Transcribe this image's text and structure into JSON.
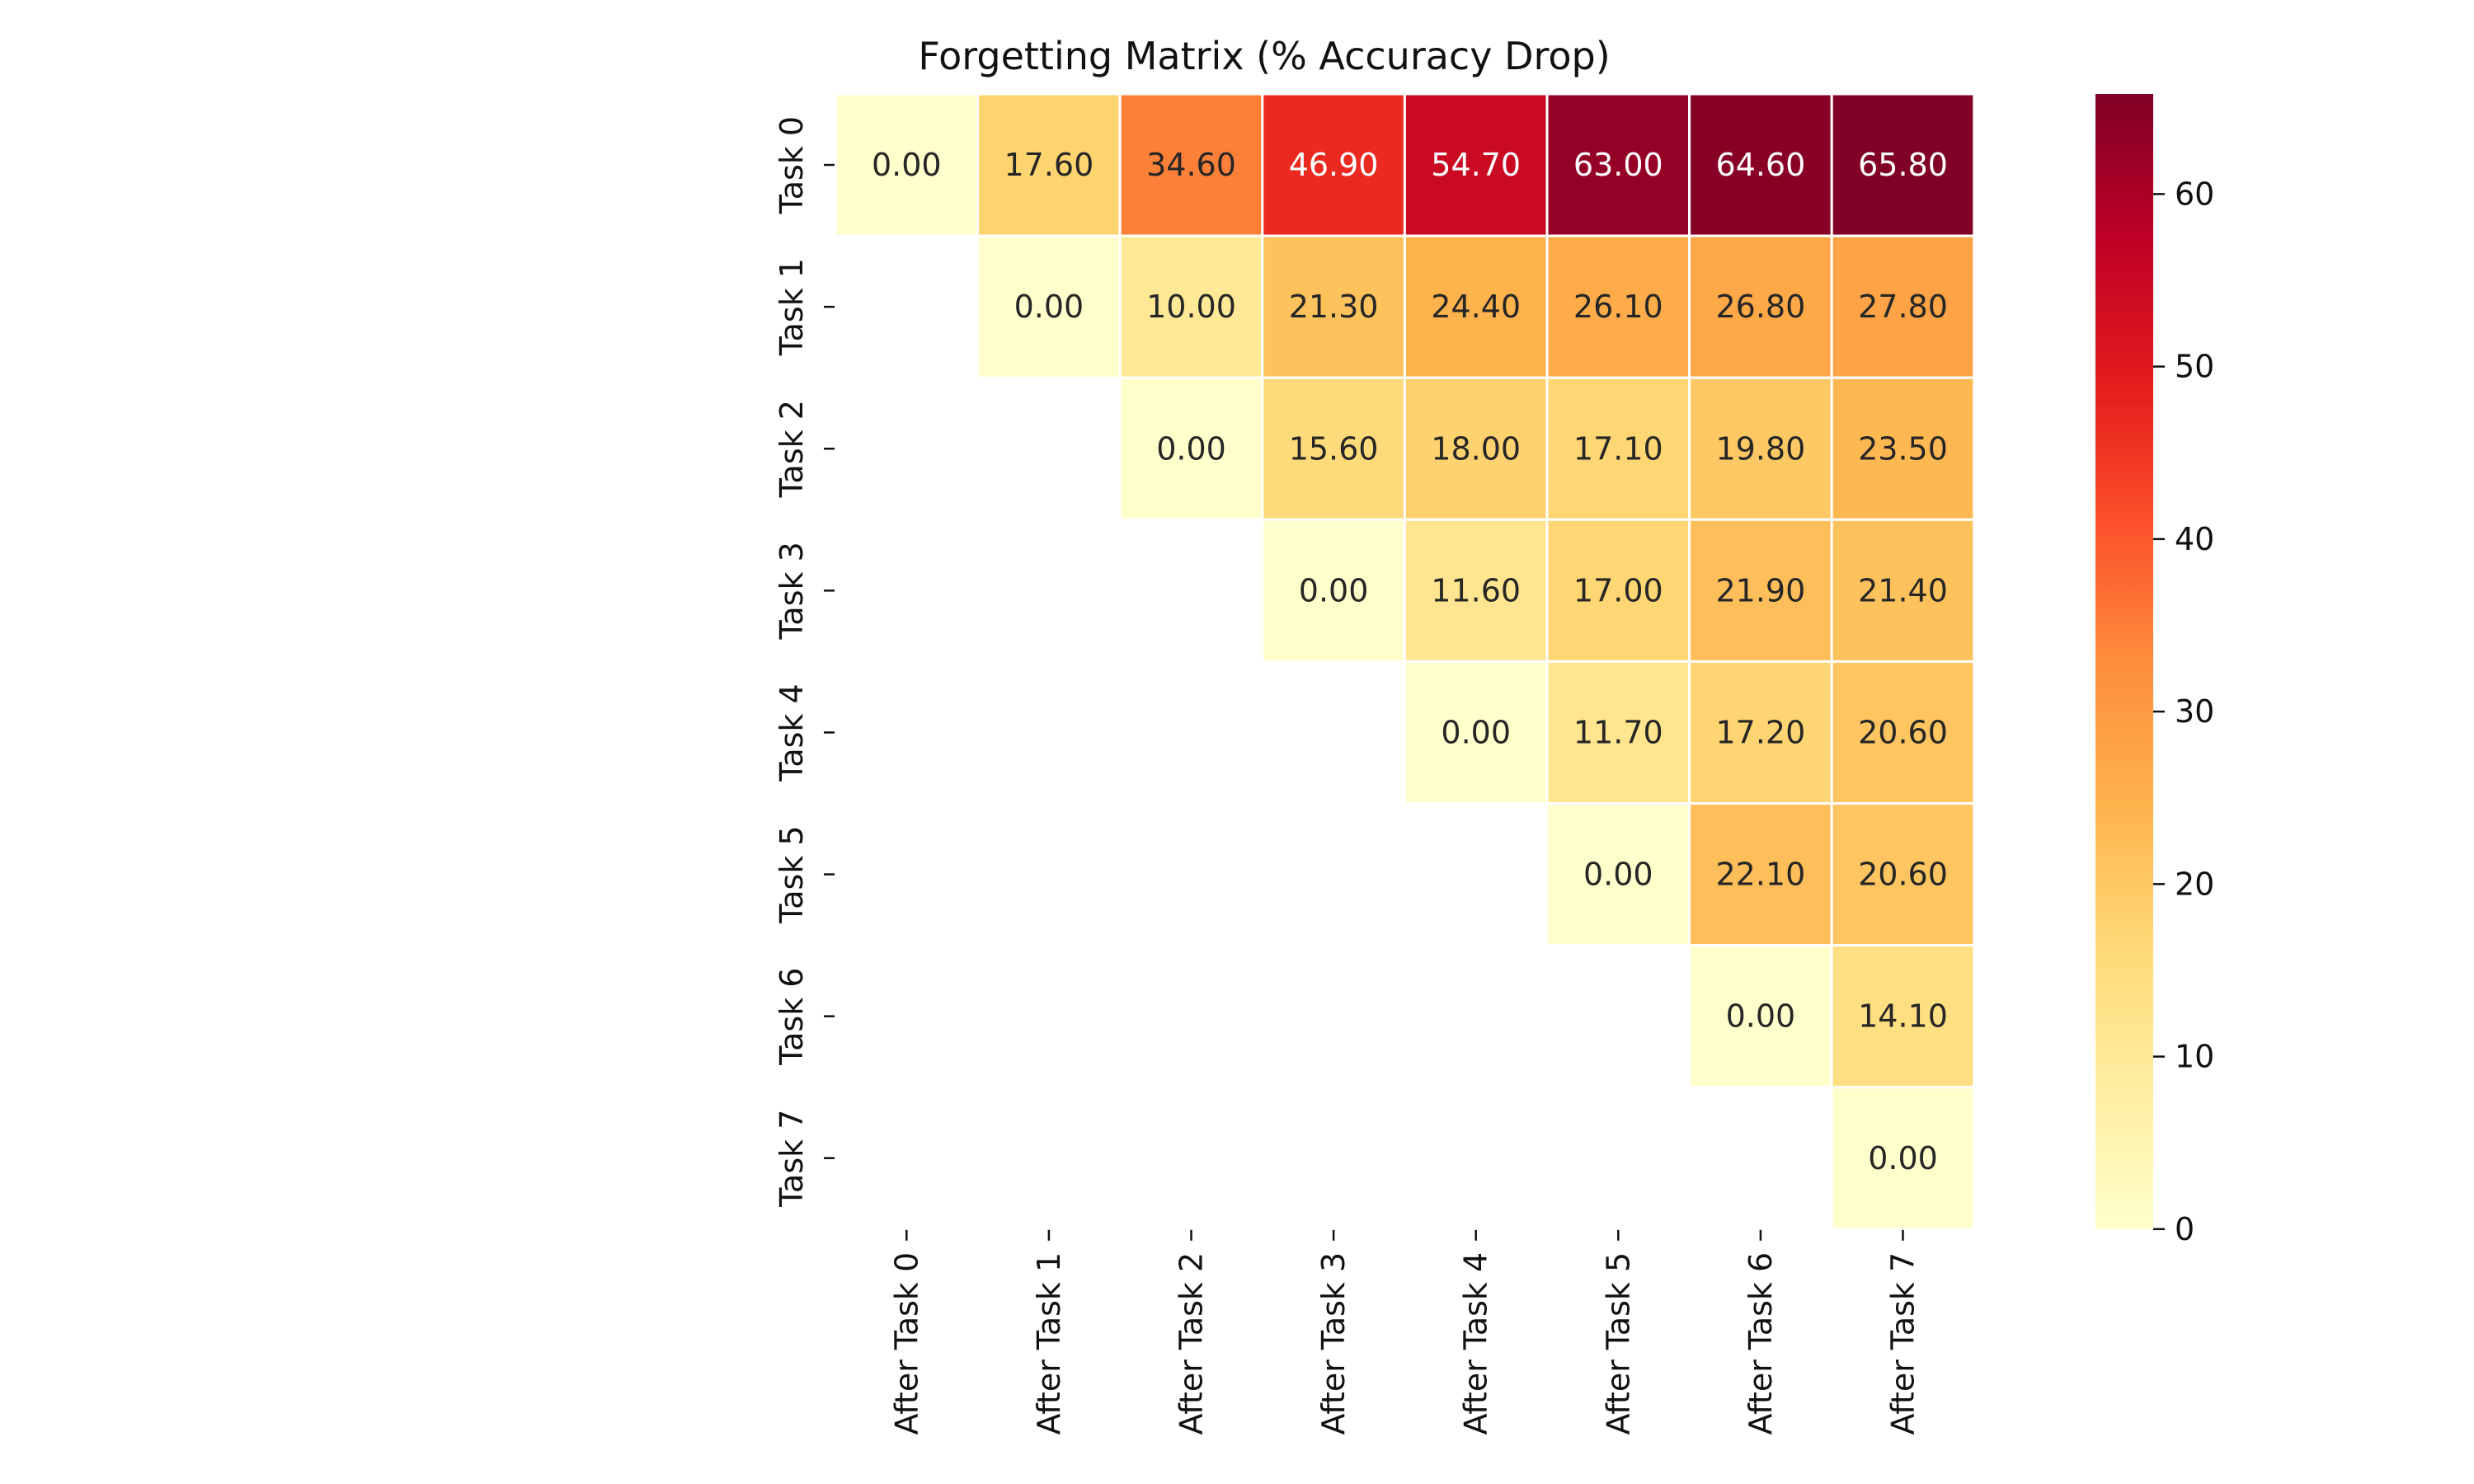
{
  "chart_data": {
    "type": "heatmap",
    "title": "Forgetting Matrix (% Accuracy Drop)",
    "xlabel": "",
    "ylabel": "",
    "x_categories": [
      "After Task 0",
      "After Task 1",
      "After Task 2",
      "After Task 3",
      "After Task 4",
      "After Task 5",
      "After Task 6",
      "After Task 7"
    ],
    "y_categories": [
      "Task 0",
      "Task 1",
      "Task 2",
      "Task 3",
      "Task 4",
      "Task 5",
      "Task 6",
      "Task 7"
    ],
    "values": [
      [
        0.0,
        17.6,
        34.6,
        46.9,
        54.7,
        63.0,
        64.6,
        65.8
      ],
      [
        null,
        0.0,
        10.0,
        21.3,
        24.4,
        26.1,
        26.8,
        27.8
      ],
      [
        null,
        null,
        0.0,
        15.6,
        18.0,
        17.1,
        19.8,
        23.5
      ],
      [
        null,
        null,
        null,
        0.0,
        11.6,
        17.0,
        21.9,
        21.4
      ],
      [
        null,
        null,
        null,
        null,
        0.0,
        11.7,
        17.2,
        20.6
      ],
      [
        null,
        null,
        null,
        null,
        null,
        0.0,
        22.1,
        20.6
      ],
      [
        null,
        null,
        null,
        null,
        null,
        null,
        0.0,
        14.1
      ],
      [
        null,
        null,
        null,
        null,
        null,
        null,
        null,
        0.0
      ]
    ],
    "value_format_decimals": 2,
    "colormap": "YlOrRd",
    "color_range": [
      0,
      65.8
    ],
    "colorbar_ticks": [
      0,
      10,
      20,
      30,
      40,
      50,
      60
    ],
    "grid": false,
    "colorbar_position": "right"
  }
}
